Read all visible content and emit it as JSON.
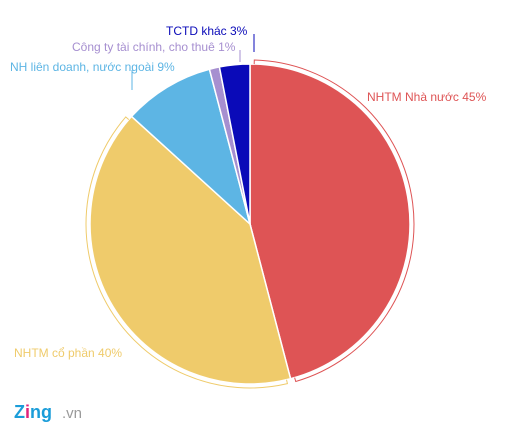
{
  "chart_data": {
    "type": "pie",
    "slices": [
      {
        "label": "NHTM Nhà nước 45%",
        "value": 45,
        "color": "#de5455"
      },
      {
        "label": "NHTM cổ phần 40%",
        "value": 40,
        "color": "#efcb6b"
      },
      {
        "label": "NH liên doanh, nước ngoài 9%",
        "value": 9,
        "color": "#5db5e4"
      },
      {
        "label": "Công ty tài chính, cho thuê 1%",
        "value": 1,
        "color": "#a68fd0"
      },
      {
        "label": "TCTD khác 3%",
        "value": 3,
        "color": "#0a0ab8"
      }
    ],
    "start": "12 o'clock",
    "direction": "clockwise",
    "legend": "none"
  },
  "branding": {
    "logo_main": "Zing",
    "logo_suffix": ".vn",
    "colors": {
      "logo_z": "#1b9dd9",
      "logo_i": "#e0237a",
      "logo_rest": "#1b9dd9",
      "suffix": "#9a9a9a"
    }
  }
}
